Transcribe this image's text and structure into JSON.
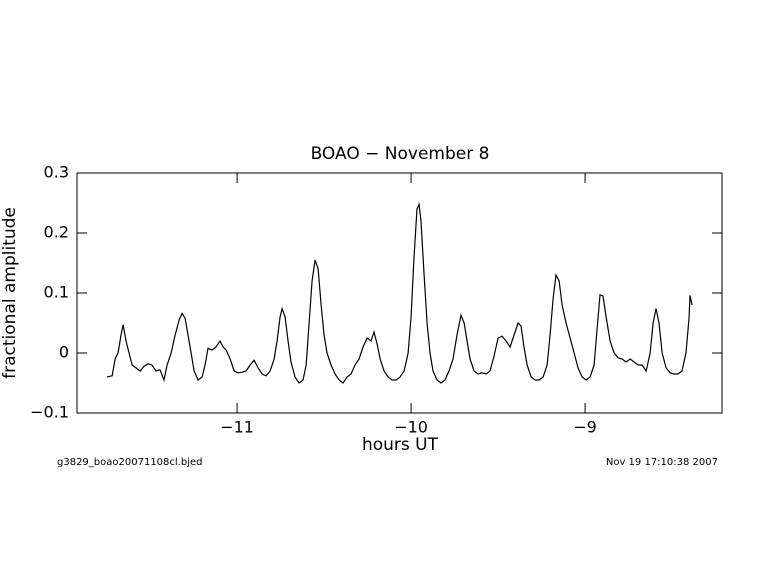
{
  "chart_data": {
    "type": "line",
    "title": "BOAO − November 8",
    "x_label": "hours UT",
    "y_label": "fractional amplitude",
    "xlim": [
      -11.92,
      -8.213
    ],
    "ylim": [
      -0.1,
      0.3
    ],
    "xticks": [
      {
        "value": -11,
        "label": "−11"
      },
      {
        "value": -10,
        "label": "−10"
      },
      {
        "value": -9,
        "label": "−9"
      }
    ],
    "yticks": [
      {
        "value": -0.1,
        "label": "−0.1"
      },
      0,
      0.1,
      0.2,
      0.3
    ],
    "grid": false,
    "series": [
      {
        "color": "#000000",
        "x": [
          -11.747,
          -11.718,
          -11.701,
          -11.684,
          -11.667,
          -11.655,
          -11.638,
          -11.621,
          -11.603,
          -11.58,
          -11.557,
          -11.534,
          -11.511,
          -11.489,
          -11.466,
          -11.443,
          -11.42,
          -11.402,
          -11.379,
          -11.356,
          -11.333,
          -11.316,
          -11.299,
          -11.282,
          -11.264,
          -11.247,
          -11.224,
          -11.201,
          -11.184,
          -11.167,
          -11.144,
          -11.121,
          -11.098,
          -11.08,
          -11.063,
          -11.04,
          -11.017,
          -10.994,
          -10.971,
          -10.948,
          -10.925,
          -10.902,
          -10.879,
          -10.856,
          -10.833,
          -10.81,
          -10.787,
          -10.77,
          -10.753,
          -10.741,
          -10.724,
          -10.707,
          -10.69,
          -10.667,
          -10.644,
          -10.621,
          -10.603,
          -10.586,
          -10.569,
          -10.552,
          -10.534,
          -10.517,
          -10.5,
          -10.483,
          -10.46,
          -10.437,
          -10.414,
          -10.391,
          -10.368,
          -10.345,
          -10.322,
          -10.299,
          -10.276,
          -10.253,
          -10.23,
          -10.213,
          -10.195,
          -10.178,
          -10.155,
          -10.132,
          -10.109,
          -10.086,
          -10.063,
          -10.04,
          -10.017,
          -10,
          -9.983,
          -9.966,
          -9.954,
          -9.943,
          -9.925,
          -9.908,
          -9.891,
          -9.874,
          -9.851,
          -9.828,
          -9.805,
          -9.782,
          -9.759,
          -9.736,
          -9.713,
          -9.695,
          -9.678,
          -9.661,
          -9.638,
          -9.615,
          -9.592,
          -9.569,
          -9.546,
          -9.523,
          -9.5,
          -9.477,
          -9.454,
          -9.431,
          -9.408,
          -9.385,
          -9.368,
          -9.351,
          -9.333,
          -9.31,
          -9.287,
          -9.264,
          -9.241,
          -9.218,
          -9.201,
          -9.184,
          -9.167,
          -9.149,
          -9.132,
          -9.109,
          -9.086,
          -9.063,
          -9.04,
          -9.017,
          -8.994,
          -8.971,
          -8.948,
          -8.931,
          -8.914,
          -8.897,
          -8.879,
          -8.856,
          -8.833,
          -8.81,
          -8.787,
          -8.764,
          -8.741,
          -8.718,
          -8.695,
          -8.672,
          -8.649,
          -8.626,
          -8.609,
          -8.592,
          -8.575,
          -8.557,
          -8.534,
          -8.511,
          -8.489,
          -8.466,
          -8.443,
          -8.42,
          -8.402,
          -8.397,
          -8.385
        ],
        "values": [
          -0.04,
          -0.038,
          -0.01,
          0,
          0.03,
          0.047,
          0.02,
          0,
          -0.02,
          -0.025,
          -0.03,
          -0.022,
          -0.018,
          -0.02,
          -0.03,
          -0.028,
          -0.045,
          -0.02,
          0,
          0.03,
          0.055,
          0.066,
          0.058,
          0.03,
          0,
          -0.03,
          -0.045,
          -0.04,
          -0.02,
          0.008,
          0.005,
          0.01,
          0.02,
          0.01,
          0.005,
          -0.01,
          -0.03,
          -0.033,
          -0.032,
          -0.03,
          -0.02,
          -0.012,
          -0.025,
          -0.035,
          -0.038,
          -0.03,
          -0.01,
          0.02,
          0.06,
          0.074,
          0.06,
          0.02,
          -0.015,
          -0.04,
          -0.05,
          -0.045,
          -0.02,
          0.05,
          0.12,
          0.155,
          0.14,
          0.08,
          0.03,
          0,
          -0.02,
          -0.035,
          -0.045,
          -0.05,
          -0.04,
          -0.035,
          -0.02,
          -0.01,
          0.01,
          0.025,
          0.02,
          0.035,
          0.015,
          -0.01,
          -0.03,
          -0.04,
          -0.045,
          -0.045,
          -0.04,
          -0.03,
          0,
          0.06,
          0.16,
          0.24,
          0.248,
          0.22,
          0.13,
          0.05,
          0,
          -0.03,
          -0.045,
          -0.05,
          -0.045,
          -0.03,
          -0.01,
          0.03,
          0.063,
          0.05,
          0.02,
          -0.01,
          -0.03,
          -0.035,
          -0.033,
          -0.035,
          -0.03,
          -0.005,
          0.025,
          0.028,
          0.02,
          0.01,
          0.03,
          0.05,
          0.045,
          0.01,
          -0.02,
          -0.04,
          -0.045,
          -0.045,
          -0.04,
          -0.02,
          0.03,
          0.09,
          0.13,
          0.12,
          0.08,
          0.05,
          0.025,
          0,
          -0.025,
          -0.04,
          -0.045,
          -0.04,
          -0.02,
          0.04,
          0.097,
          0.095,
          0.06,
          0.02,
          0,
          -0.008,
          -0.01,
          -0.015,
          -0.01,
          -0.015,
          -0.02,
          -0.02,
          -0.03,
          0,
          0.05,
          0.074,
          0.05,
          0,
          -0.025,
          -0.033,
          -0.035,
          -0.035,
          -0.03,
          0,
          0.06,
          0.096,
          0.08
        ]
      }
    ],
    "footer": {
      "file": "g3829_boao20071108cl.bjed",
      "date": "Nov 19 17:10:38 2007"
    }
  }
}
